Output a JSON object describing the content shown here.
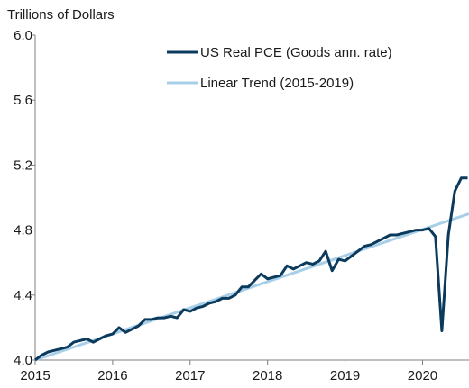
{
  "chart_data": {
    "type": "line",
    "ylabel": "Trillions  of Dollars",
    "xlim": [
      2015.0,
      2020.6
    ],
    "ylim": [
      4.0,
      6.0
    ],
    "x_ticks": [
      2015,
      2016,
      2017,
      2018,
      2019,
      2020
    ],
    "x_tick_labels": [
      "2015",
      "2016",
      "2017",
      "2018",
      "2019",
      "2020"
    ],
    "y_ticks": [
      4.0,
      4.4,
      4.8,
      5.2,
      5.6,
      6.0
    ],
    "y_tick_labels": [
      "4.0",
      "4.4",
      "4.8",
      "5.2",
      "5.6",
      "6.0"
    ],
    "legend_position": "top-right",
    "colors": {
      "actual": "#0b3a5c",
      "trend": "#a8cfe8",
      "axis": "#7f7f7f"
    },
    "series": [
      {
        "name": "US Real PCE (Goods ann. rate)",
        "role": "actual",
        "x": [
          2015.0,
          2015.083,
          2015.167,
          2015.25,
          2015.333,
          2015.417,
          2015.5,
          2015.583,
          2015.667,
          2015.75,
          2015.833,
          2015.917,
          2016.0,
          2016.083,
          2016.167,
          2016.25,
          2016.333,
          2016.417,
          2016.5,
          2016.583,
          2016.667,
          2016.75,
          2016.833,
          2016.917,
          2017.0,
          2017.083,
          2017.167,
          2017.25,
          2017.333,
          2017.417,
          2017.5,
          2017.583,
          2017.667,
          2017.75,
          2017.833,
          2017.917,
          2018.0,
          2018.083,
          2018.167,
          2018.25,
          2018.333,
          2018.417,
          2018.5,
          2018.583,
          2018.667,
          2018.75,
          2018.833,
          2018.917,
          2019.0,
          2019.083,
          2019.167,
          2019.25,
          2019.333,
          2019.417,
          2019.5,
          2019.583,
          2019.667,
          2019.75,
          2019.833,
          2019.917,
          2020.0,
          2020.083,
          2020.167,
          2020.25,
          2020.333,
          2020.417,
          2020.5,
          2020.583
        ],
        "y": [
          4.0,
          4.03,
          4.05,
          4.06,
          4.07,
          4.08,
          4.11,
          4.12,
          4.13,
          4.11,
          4.13,
          4.15,
          4.16,
          4.2,
          4.17,
          4.19,
          4.21,
          4.25,
          4.25,
          4.26,
          4.26,
          4.27,
          4.26,
          4.31,
          4.3,
          4.32,
          4.33,
          4.35,
          4.36,
          4.38,
          4.38,
          4.4,
          4.45,
          4.45,
          4.49,
          4.53,
          4.5,
          4.51,
          4.52,
          4.58,
          4.56,
          4.58,
          4.6,
          4.59,
          4.61,
          4.67,
          4.55,
          4.62,
          4.61,
          4.64,
          4.67,
          4.7,
          4.71,
          4.73,
          4.75,
          4.77,
          4.77,
          4.78,
          4.79,
          4.8,
          4.8,
          4.81,
          4.76,
          4.18,
          4.77,
          5.04,
          5.12,
          5.12
        ]
      },
      {
        "name": "Linear Trend (2015-2019)",
        "role": "trend",
        "x": [
          2015.0,
          2020.6
        ],
        "y": [
          4.0,
          4.9
        ]
      }
    ]
  }
}
